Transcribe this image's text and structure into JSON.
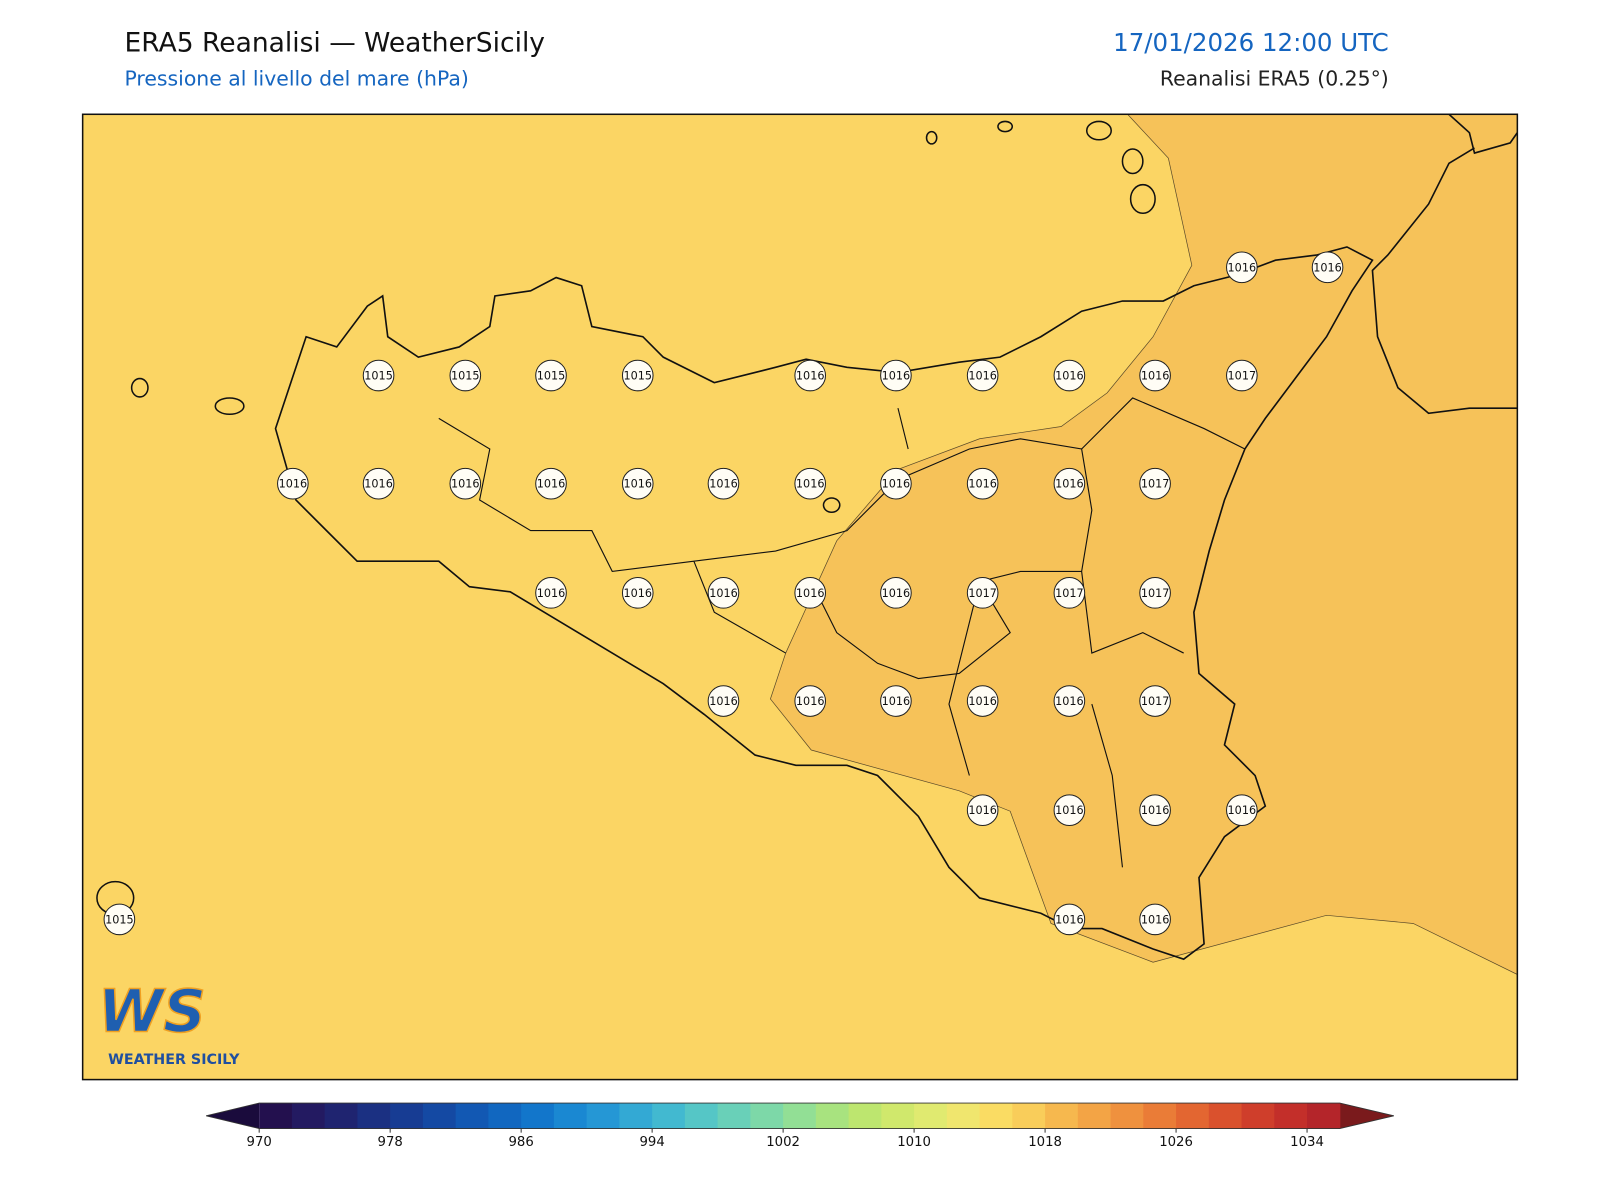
{
  "header": {
    "title": "ERA5 Reanalisi — WeatherSicily",
    "subtitle": "Pressione al livello del mare (hPa)",
    "datetime": "17/01/2026 12:00 UTC",
    "source": "Reanalisi ERA5 (0.25°)"
  },
  "map": {
    "pressure_labels": [
      1016,
      1016,
      1015,
      1015,
      1015,
      1015,
      1016,
      1016,
      1016,
      1016,
      1016,
      1017,
      1016,
      1016,
      1016,
      1016,
      1016,
      1016,
      1016,
      1016,
      1016,
      1016,
      1017,
      1016,
      1016,
      1016,
      1016,
      1016,
      1017,
      1017,
      1017,
      1016,
      1016,
      1016,
      1016,
      1016,
      1017,
      1016,
      1016,
      1016,
      1016,
      1015,
      1016,
      1016
    ]
  },
  "colorbar": {
    "range": [
      970,
      1036
    ],
    "ticks": [
      970,
      978,
      986,
      994,
      1002,
      1010,
      1018,
      1026,
      1034
    ],
    "colors": [
      "#23104e",
      "#231a61",
      "#1f2470",
      "#1b3082",
      "#173c93",
      "#1449a3",
      "#1258b3",
      "#1167c0",
      "#1276cb",
      "#1a88d2",
      "#2597d5",
      "#33a9d4",
      "#42b9d0",
      "#55c6c6",
      "#69d0b8",
      "#7dd8a8",
      "#92df95",
      "#a8e37f",
      "#bde66f",
      "#d0e86c",
      "#e0ea70",
      "#f0e66e",
      "#fadc63",
      "#f9cd5a",
      "#f6b84e",
      "#f3a445",
      "#ef913e",
      "#ea7c37",
      "#e36631",
      "#da512d",
      "#cf3e2b",
      "#c32f2a",
      "#b4252a"
    ],
    "under_color": "#1a0b3c",
    "over_color": "#7a1a1c"
  },
  "logo": {
    "mark": "WS",
    "text": "WEATHER SICILY"
  }
}
